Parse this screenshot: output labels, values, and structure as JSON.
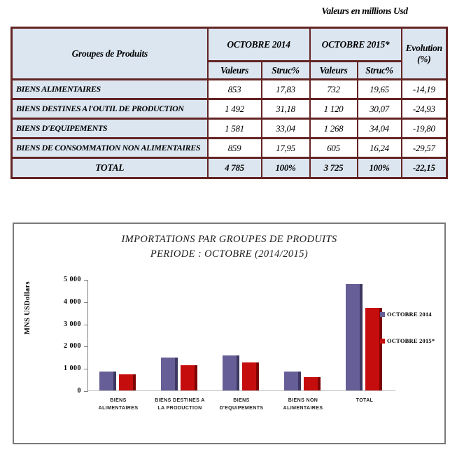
{
  "doc_title": "Valeurs en millions Usd",
  "colors": {
    "accent_maroon": "#943634",
    "table_border": "#632423",
    "header_bg": "#dce6f1",
    "bar_2014": "#665e96",
    "bar_2014_side": "#3e3760",
    "bar_2015": "#c60d0d",
    "bar_2015_side": "#7c0404"
  },
  "table": {
    "header": {
      "col_product": "Groupes de Produits",
      "col_2014": "OCTOBRE 2014",
      "col_2015": "OCTOBRE 2015*",
      "col_evolution_line1": "Evolution",
      "col_evolution_line2": "(%)",
      "sub_valeurs_2014": "Valeurs",
      "sub_struc_2014": "Struc%",
      "sub_valeurs_2015": "Valeurs",
      "sub_struc_2015": "Struc%"
    },
    "rows": [
      {
        "label": "BIENS ALIMENTAIRES",
        "valeurs_2014": "853",
        "struc_2014": "17,83",
        "valeurs_2015": "732",
        "struc_2015": "19,65",
        "evolution": "-14,19"
      },
      {
        "label": "BIENS DESTINES A l'OUTIL DE PRODUCTION",
        "valeurs_2014": "1 492",
        "struc_2014": "31,18",
        "valeurs_2015": "1 120",
        "struc_2015": "30,07",
        "evolution": "-24,93"
      },
      {
        "label": "BIENS D'EQUIPEMENTS",
        "valeurs_2014": "1 581",
        "struc_2014": "33,04",
        "valeurs_2015": "1 268",
        "struc_2015": "34,04",
        "evolution": "-19,80"
      },
      {
        "label": "BIENS DE CONSOMMATION NON ALIMENTAIRES",
        "valeurs_2014": "859",
        "struc_2014": "17,95",
        "valeurs_2015": "605",
        "struc_2015": "16,24",
        "evolution": "-29,57"
      }
    ],
    "total": {
      "label": "TOTAL",
      "valeurs_2014": "4 785",
      "struc_2014": "100%",
      "valeurs_2015": "3 725",
      "struc_2015": "100%",
      "evolution": "-22,15"
    }
  },
  "chart_data": {
    "type": "bar",
    "title_line1": "IMPORTATIONS PAR GROUPES DE PRODUITS",
    "title_line2": "PERIODE : OCTOBRE (2014/2015)",
    "ylabel": "MNS USDollars",
    "xlabel": "",
    "ylim": [
      0,
      5000
    ],
    "ytick_values": [
      5000,
      4000,
      3000,
      2000,
      1000,
      0
    ],
    "ytick_labels": [
      "5 000",
      "4 000",
      "3 000",
      "2 000",
      "1 000",
      "0"
    ],
    "grid": false,
    "legend_position": "right",
    "categories": [
      "BIENS ALIMENTAIRES",
      "BIENS DESTINES A LA PRODUCTION",
      "BIENS D'EQUIPEMENTS",
      "BIENS NON ALIMENTAIRES",
      "TOTAL"
    ],
    "category_label_lines": [
      [
        "BIENS",
        "ALIMENTAIRES"
      ],
      [
        "BIENS DESTINES A",
        "LA PRODUCTION"
      ],
      [
        "BIENS",
        "D'EQUIPEMENTS"
      ],
      [
        "BIENS NON",
        "ALIMENTAIRES"
      ],
      [
        "TOTAL"
      ]
    ],
    "series": [
      {
        "name": "OCTOBRE 2014",
        "color": "#665e96",
        "side_color": "#3e3760",
        "values": [
          853,
          1492,
          1581,
          859,
          4785
        ]
      },
      {
        "name": "OCTOBRE 2015*",
        "color": "#c60d0d",
        "side_color": "#7c0404",
        "values": [
          732,
          1120,
          1268,
          605,
          3725
        ]
      }
    ]
  }
}
